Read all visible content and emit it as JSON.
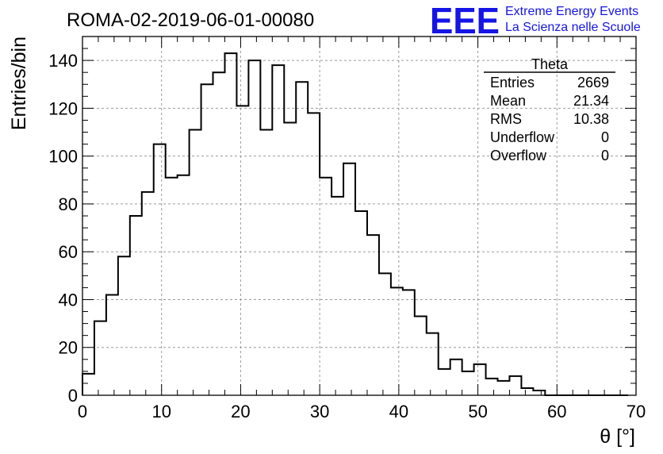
{
  "chart_data": {
    "type": "bar",
    "title": "ROMA-02-2019-06-01-00080",
    "xlabel": "θ [°]",
    "ylabel": "Entries/bin",
    "xlim": [
      0,
      70
    ],
    "ylim": [
      0,
      150
    ],
    "x_ticks": [
      0,
      10,
      20,
      30,
      40,
      50,
      60,
      70
    ],
    "y_ticks": [
      0,
      20,
      40,
      60,
      80,
      100,
      120,
      140
    ],
    "grid": true,
    "bin_width": 1.5,
    "bin_start": 0,
    "values": [
      9,
      31,
      42,
      58,
      75,
      85,
      105,
      91,
      92,
      111,
      130,
      135,
      143,
      121,
      140,
      111,
      138,
      114,
      131,
      118,
      91,
      83,
      97,
      77,
      67,
      51,
      45,
      44,
      33,
      26,
      11,
      15,
      10,
      13,
      7,
      6,
      8,
      3,
      2,
      0,
      0,
      0,
      0,
      0,
      0,
      0
    ]
  },
  "stats": {
    "name": "Theta",
    "rows": [
      {
        "label": "Entries",
        "value": "2669"
      },
      {
        "label": "Mean",
        "value": "21.34"
      },
      {
        "label": "RMS",
        "value": "10.38"
      },
      {
        "label": "Underflow",
        "value": "0"
      },
      {
        "label": "Overflow",
        "value": "0"
      }
    ]
  },
  "logo": {
    "mark": "EEE",
    "line1": "Extreme Energy Events",
    "line2": "La Scienza nelle Scuole",
    "color": "#1515e6"
  }
}
